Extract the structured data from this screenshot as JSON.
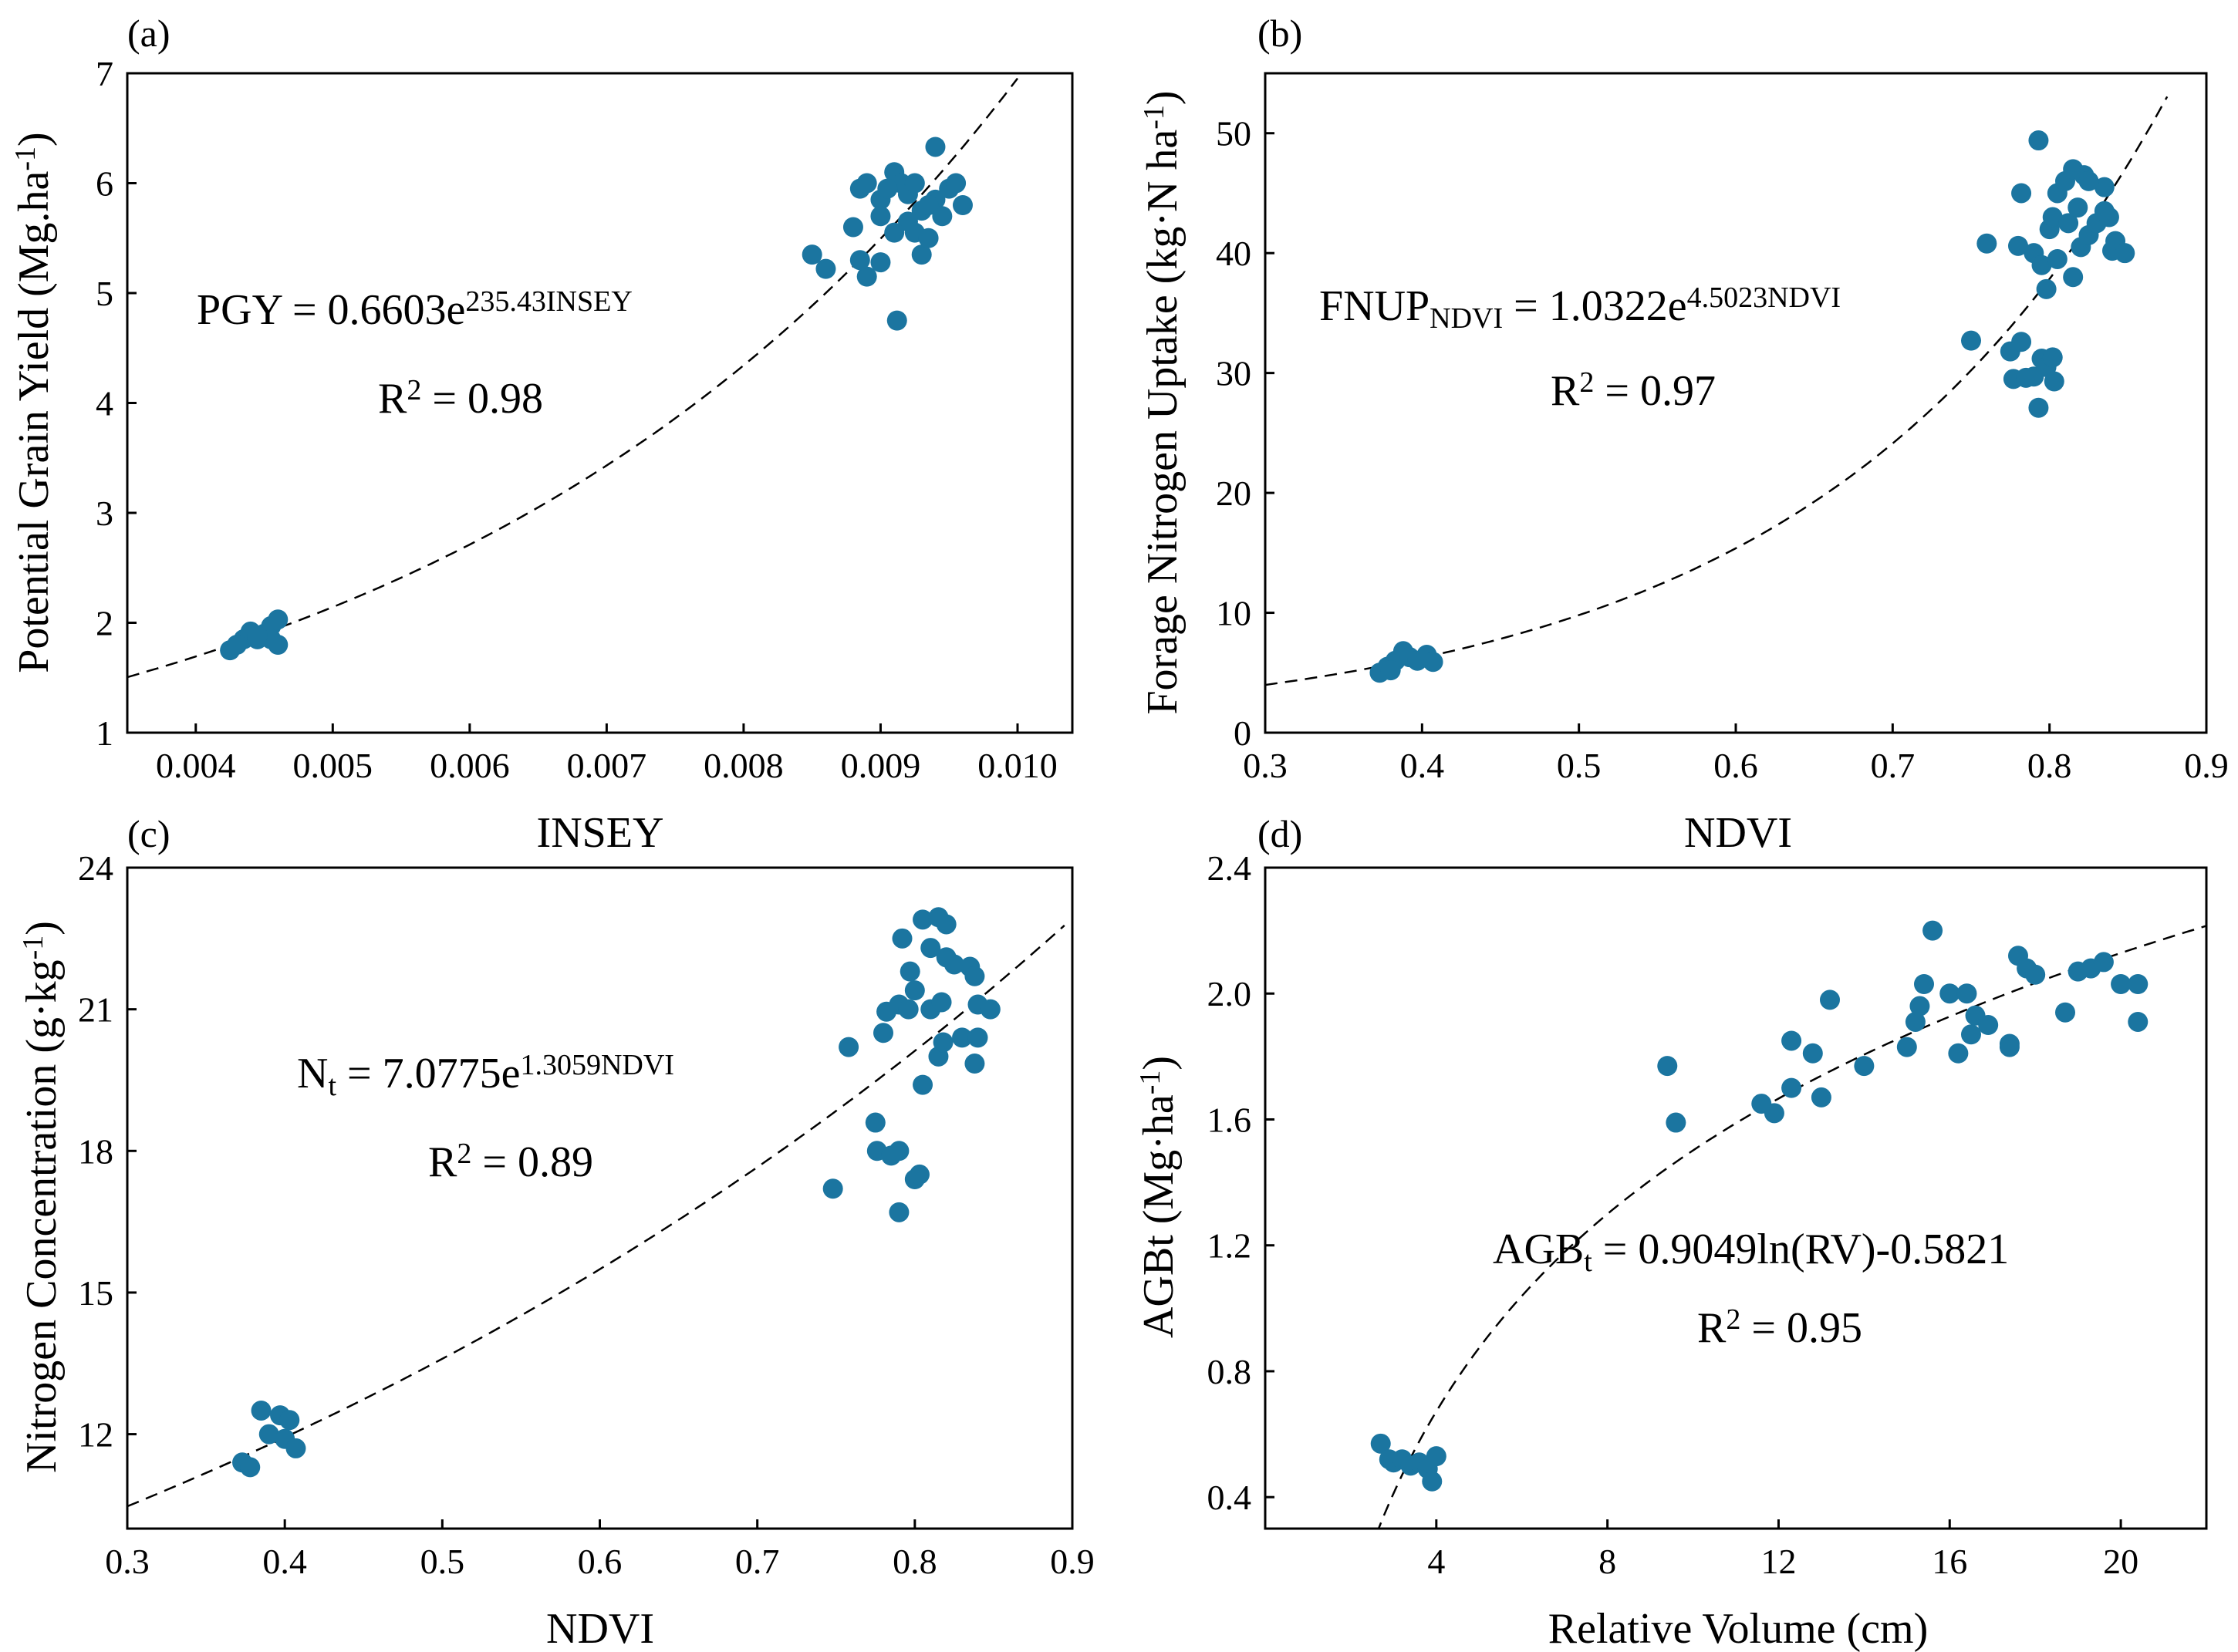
{
  "chart_data": [
    {
      "id": "a",
      "type": "scatter",
      "panel_label": "(a)",
      "xlabel": "INSEY",
      "ylabel": {
        "main": "Potential Grain Yield (Mg.ha",
        "sup": "-1",
        "tail": ")"
      },
      "xlim": [
        0.0035,
        0.0104
      ],
      "ylim": [
        1,
        7
      ],
      "xticks": [
        0.004,
        0.005,
        0.006,
        0.007,
        0.008,
        0.009,
        0.01
      ],
      "xtick_labels": [
        "0.004",
        "0.005",
        "0.006",
        "0.007",
        "0.008",
        "0.009",
        "0.010"
      ],
      "yticks": [
        1,
        2,
        3,
        4,
        5,
        6,
        7
      ],
      "ytick_labels": [
        "1",
        "2",
        "3",
        "4",
        "5",
        "6",
        "7"
      ],
      "fit": {
        "kind": "exp",
        "a": 0.6603,
        "b": 235.43,
        "range": [
          0.0035,
          0.01
        ]
      },
      "equation": {
        "lhs": "PGY = 0.6603e",
        "lhs_sub": "",
        "sup": "235.43INSEY",
        "r2": "R",
        "r2_sup": "2",
        "r2_tail": " = 0.98"
      },
      "points": [
        [
          0.00425,
          1.75
        ],
        [
          0.00435,
          1.85
        ],
        [
          0.0044,
          1.92
        ],
        [
          0.00445,
          1.85
        ],
        [
          0.0045,
          1.9
        ],
        [
          0.00455,
          1.97
        ],
        [
          0.0046,
          2.03
        ],
        [
          0.0046,
          1.8
        ],
        [
          0.00455,
          1.85
        ],
        [
          0.00445,
          1.88
        ],
        [
          0.0043,
          1.8
        ],
        [
          0.0085,
          5.35
        ],
        [
          0.0086,
          5.22
        ],
        [
          0.0088,
          5.6
        ],
        [
          0.0089,
          5.15
        ],
        [
          0.00885,
          5.3
        ],
        [
          0.009,
          5.28
        ],
        [
          0.00885,
          5.95
        ],
        [
          0.0089,
          6.0
        ],
        [
          0.009,
          5.85
        ],
        [
          0.0091,
          6.1
        ],
        [
          0.00915,
          6.0
        ],
        [
          0.0092,
          5.9
        ],
        [
          0.00925,
          6.0
        ],
        [
          0.0093,
          5.75
        ],
        [
          0.0092,
          5.65
        ],
        [
          0.0091,
          5.55
        ],
        [
          0.009,
          5.7
        ],
        [
          0.00925,
          5.55
        ],
        [
          0.0093,
          5.35
        ],
        [
          0.00935,
          5.5
        ],
        [
          0.0094,
          5.85
        ],
        [
          0.0095,
          5.95
        ],
        [
          0.00955,
          6.0
        ],
        [
          0.0094,
          6.33
        ],
        [
          0.0096,
          5.8
        ],
        [
          0.00945,
          5.7
        ],
        [
          0.00912,
          4.75
        ],
        [
          0.00905,
          5.95
        ],
        [
          0.00935,
          5.8
        ]
      ]
    },
    {
      "id": "b",
      "type": "scatter",
      "panel_label": "(b)",
      "xlabel": "NDVI",
      "ylabel": {
        "main": "Forage Nitrogen Uptake (kg·N ha",
        "sup": "-1",
        "tail": ")"
      },
      "xlim": [
        0.3,
        0.9
      ],
      "ylim": [
        0,
        55
      ],
      "xticks": [
        0.3,
        0.4,
        0.5,
        0.6,
        0.7,
        0.8,
        0.9
      ],
      "xtick_labels": [
        "0.3",
        "0.4",
        "0.5",
        "0.6",
        "0.7",
        "0.8",
        "0.9"
      ],
      "yticks": [
        0,
        10,
        20,
        30,
        40,
        50
      ],
      "ytick_labels": [
        "0",
        "10",
        "20",
        "30",
        "40",
        "50"
      ],
      "fit": {
        "kind": "exp",
        "a": 1.0322,
        "b": 4.5023,
        "range": [
          0.3,
          0.875
        ]
      },
      "equation": {
        "lhs": "FNUP",
        "lhs_sub": "NDVI",
        "lhs_tail": " = 1.0322e",
        "sup": "4.5023NDVI",
        "r2": "R",
        "r2_sup": "2",
        "r2_tail": " = 0.97"
      },
      "points": [
        [
          0.373,
          5.0
        ],
        [
          0.378,
          5.5
        ],
        [
          0.383,
          6.0
        ],
        [
          0.388,
          6.8
        ],
        [
          0.392,
          6.3
        ],
        [
          0.397,
          6.0
        ],
        [
          0.403,
          6.5
        ],
        [
          0.407,
          5.9
        ],
        [
          0.38,
          5.2
        ],
        [
          0.75,
          32.7
        ],
        [
          0.76,
          40.8
        ],
        [
          0.775,
          31.8
        ],
        [
          0.777,
          29.5
        ],
        [
          0.782,
          32.6
        ],
        [
          0.785,
          29.6
        ],
        [
          0.79,
          29.7
        ],
        [
          0.793,
          27.1
        ],
        [
          0.795,
          31.2
        ],
        [
          0.798,
          30.5
        ],
        [
          0.802,
          31.3
        ],
        [
          0.803,
          29.3
        ],
        [
          0.78,
          40.6
        ],
        [
          0.782,
          45.0
        ],
        [
          0.79,
          40.0
        ],
        [
          0.793,
          49.4
        ],
        [
          0.795,
          39.0
        ],
        [
          0.798,
          37.0
        ],
        [
          0.8,
          42.0
        ],
        [
          0.802,
          43.0
        ],
        [
          0.805,
          45.0
        ],
        [
          0.805,
          39.5
        ],
        [
          0.81,
          46.0
        ],
        [
          0.812,
          42.5
        ],
        [
          0.815,
          47.0
        ],
        [
          0.815,
          38.0
        ],
        [
          0.818,
          43.8
        ],
        [
          0.82,
          40.5
        ],
        [
          0.822,
          46.5
        ],
        [
          0.825,
          41.5
        ],
        [
          0.83,
          42.5
        ],
        [
          0.835,
          45.5
        ],
        [
          0.838,
          43.0
        ],
        [
          0.84,
          40.2
        ],
        [
          0.842,
          41.0
        ],
        [
          0.848,
          40.0
        ],
        [
          0.835,
          43.5
        ],
        [
          0.825,
          46.0
        ]
      ]
    },
    {
      "id": "c",
      "type": "scatter",
      "panel_label": "(c)",
      "xlabel": "NDVI",
      "ylabel": {
        "main": "Nitrogen Concentration (g·kg",
        "sup": "-1",
        "tail": ")"
      },
      "xlim": [
        0.3,
        0.9
      ],
      "ylim": [
        10,
        24
      ],
      "xticks": [
        0.3,
        0.4,
        0.5,
        0.6,
        0.7,
        0.8,
        0.9
      ],
      "xtick_labels": [
        "0.3",
        "0.4",
        "0.5",
        "0.6",
        "0.7",
        "0.8",
        "0.9"
      ],
      "yticks": [
        12,
        15,
        18,
        21,
        24
      ],
      "ytick_labels": [
        "12",
        "15",
        "18",
        "21",
        "24"
      ],
      "fit": {
        "kind": "exp",
        "a": 7.0775,
        "b": 1.3059,
        "range": [
          0.3,
          0.895
        ]
      },
      "equation": {
        "lhs": "N",
        "lhs_sub": "t",
        "lhs_tail": " = 7.0775e",
        "sup": "1.3059NDVI",
        "r2": "R",
        "r2_sup": "2",
        "r2_tail": " = 0.89"
      },
      "points": [
        [
          0.373,
          11.4
        ],
        [
          0.378,
          11.3
        ],
        [
          0.385,
          12.5
        ],
        [
          0.39,
          12.0
        ],
        [
          0.397,
          12.4
        ],
        [
          0.4,
          11.9
        ],
        [
          0.403,
          12.3
        ],
        [
          0.407,
          11.7
        ],
        [
          0.748,
          17.2
        ],
        [
          0.758,
          20.2
        ],
        [
          0.775,
          18.6
        ],
        [
          0.776,
          18.0
        ],
        [
          0.78,
          20.5
        ],
        [
          0.782,
          20.95
        ],
        [
          0.785,
          17.9
        ],
        [
          0.79,
          18.0
        ],
        [
          0.79,
          21.1
        ],
        [
          0.79,
          16.7
        ],
        [
          0.792,
          22.5
        ],
        [
          0.796,
          21.0
        ],
        [
          0.797,
          21.8
        ],
        [
          0.8,
          17.4
        ],
        [
          0.8,
          21.4
        ],
        [
          0.803,
          17.5
        ],
        [
          0.805,
          22.9
        ],
        [
          0.805,
          19.4
        ],
        [
          0.81,
          22.3
        ],
        [
          0.81,
          21.0
        ],
        [
          0.815,
          22.95
        ],
        [
          0.815,
          20.0
        ],
        [
          0.817,
          21.15
        ],
        [
          0.818,
          20.3
        ],
        [
          0.82,
          22.8
        ],
        [
          0.82,
          22.1
        ],
        [
          0.825,
          21.95
        ],
        [
          0.83,
          20.4
        ],
        [
          0.835,
          21.9
        ],
        [
          0.838,
          21.7
        ],
        [
          0.838,
          19.85
        ],
        [
          0.84,
          20.4
        ],
        [
          0.84,
          21.1
        ],
        [
          0.848,
          21.0
        ]
      ]
    },
    {
      "id": "d",
      "type": "scatter",
      "panel_label": "(d)",
      "xlabel": "Relative Volume (cm)",
      "ylabel": {
        "main": "AGBt (Mg·ha",
        "sup": "-1",
        "tail": ")"
      },
      "xlim": [
        0,
        22
      ],
      "ylim": [
        0.3,
        2.4
      ],
      "xticks": [
        4,
        8,
        12,
        16,
        20
      ],
      "xtick_labels": [
        "4",
        "8",
        "12",
        "16",
        "20"
      ],
      "yticks": [
        0.4,
        0.8,
        1.2,
        1.6,
        2.0,
        2.4
      ],
      "ytick_labels": [
        "0.4",
        "0.8",
        "1.2",
        "1.6",
        "2.0",
        "2.4"
      ],
      "fit": {
        "kind": "log",
        "a": 0.9049,
        "b": -0.5821,
        "range": [
          2.6,
          22
        ]
      },
      "equation": {
        "lhs": "AGB",
        "lhs_sub": "t",
        "lhs_tail": " = 0.9049ln(RV)-0.5821",
        "sup": "",
        "r2": "R",
        "r2_sup": "2",
        "r2_tail": " = 0.95"
      },
      "points": [
        [
          2.7,
          0.57
        ],
        [
          2.9,
          0.52
        ],
        [
          3.0,
          0.51
        ],
        [
          3.2,
          0.52
        ],
        [
          3.4,
          0.5
        ],
        [
          3.6,
          0.51
        ],
        [
          3.8,
          0.49
        ],
        [
          3.9,
          0.45
        ],
        [
          4.0,
          0.53
        ],
        [
          9.4,
          1.77
        ],
        [
          9.6,
          1.59
        ],
        [
          11.6,
          1.65
        ],
        [
          11.9,
          1.62
        ],
        [
          12.3,
          1.85
        ],
        [
          12.3,
          1.7
        ],
        [
          12.8,
          1.81
        ],
        [
          13.0,
          1.67
        ],
        [
          13.2,
          1.98
        ],
        [
          14.0,
          1.77
        ],
        [
          15.0,
          1.83
        ],
        [
          15.2,
          1.91
        ],
        [
          15.3,
          1.96
        ],
        [
          15.4,
          2.03
        ],
        [
          15.6,
          2.2
        ],
        [
          16.0,
          2.0
        ],
        [
          16.2,
          1.81
        ],
        [
          16.4,
          2.0
        ],
        [
          16.5,
          1.87
        ],
        [
          16.6,
          1.93
        ],
        [
          16.9,
          1.9
        ],
        [
          17.4,
          1.84
        ],
        [
          17.4,
          1.83
        ],
        [
          17.6,
          2.12
        ],
        [
          17.8,
          2.08
        ],
        [
          18.0,
          2.06
        ],
        [
          18.7,
          1.94
        ],
        [
          19.0,
          2.07
        ],
        [
          19.3,
          2.08
        ],
        [
          19.6,
          2.1
        ],
        [
          20.0,
          2.03
        ],
        [
          20.4,
          2.03
        ],
        [
          20.4,
          1.91
        ]
      ]
    }
  ]
}
